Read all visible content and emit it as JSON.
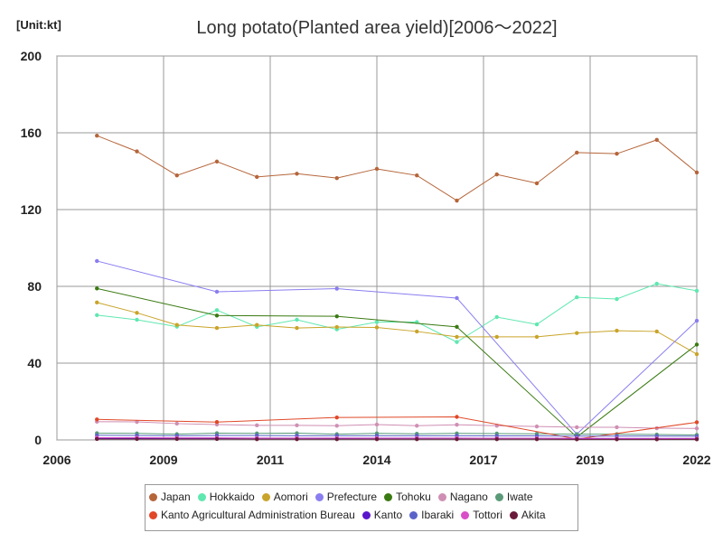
{
  "unit_label": "[Unit:kt]",
  "chart_data": {
    "type": "line",
    "title": "Long potato(Planted area yield)[2006～2022]",
    "xlabel": "",
    "ylabel": "",
    "xlim": [
      2006,
      2022
    ],
    "ylim": [
      0,
      200
    ],
    "x_ticks": [
      "2006",
      "2009",
      "2011",
      "2014",
      "2017",
      "2019",
      "2022"
    ],
    "y_ticks": [
      0,
      40,
      80,
      120,
      160,
      200
    ],
    "grid": true,
    "legend_position": "bottom",
    "x": [
      2007,
      2008,
      2009,
      2010,
      2011,
      2012,
      2013,
      2014,
      2015,
      2016,
      2017,
      2018,
      2019,
      2020,
      2021,
      2022
    ],
    "series": [
      {
        "name": "Japan",
        "color": "#b5653a",
        "values": [
          158.5,
          150.3,
          137.8,
          145.0,
          137.0,
          138.7,
          136.4,
          141.2,
          137.8,
          124.7,
          138.3,
          133.7,
          149.7,
          149.1,
          156.3,
          139.3
        ]
      },
      {
        "name": "Hokkaido",
        "color": "#5fe8b0",
        "values": [
          65.0,
          62.6,
          59.0,
          67.6,
          58.9,
          62.6,
          57.6,
          61.4,
          61.4,
          51.0,
          64.0,
          60.2,
          74.3,
          73.4,
          81.4,
          77.7
        ]
      },
      {
        "name": "Aomori",
        "color": "#c9a42a",
        "values": [
          71.6,
          66.2,
          59.9,
          58.3,
          59.9,
          58.3,
          58.8,
          58.6,
          56.5,
          53.7,
          53.7,
          53.7,
          55.7,
          56.9,
          56.5,
          44.7
        ]
      },
      {
        "name": "Prefecture",
        "color": "#8a7ef0",
        "values": [
          93.2,
          null,
          null,
          77.2,
          null,
          null,
          78.8,
          null,
          null,
          73.9,
          null,
          null,
          3.0,
          null,
          null,
          62.1
        ]
      },
      {
        "name": "Tohoku",
        "color": "#3a7a12",
        "values": [
          78.9,
          null,
          null,
          64.8,
          null,
          null,
          64.4,
          null,
          null,
          58.9,
          null,
          null,
          1.5,
          null,
          null,
          49.7
        ]
      },
      {
        "name": "Nagano",
        "color": "#cf8fb4",
        "values": [
          9.5,
          9.4,
          8.5,
          8.0,
          7.6,
          7.6,
          7.4,
          8.0,
          7.4,
          7.9,
          7.4,
          7.0,
          6.6,
          6.6,
          6.1,
          6.0
        ]
      },
      {
        "name": "Iwate",
        "color": "#5a9a78",
        "values": [
          3.5,
          3.4,
          3.0,
          3.5,
          3.4,
          3.5,
          3.0,
          3.4,
          3.2,
          3.4,
          3.3,
          3.2,
          3.0,
          3.0,
          2.8,
          2.6
        ]
      },
      {
        "name": "Kanto Agricultural Administration Bureau",
        "color": "#e04828",
        "values": [
          10.7,
          null,
          null,
          9.3,
          null,
          null,
          11.7,
          null,
          null,
          12.0,
          null,
          null,
          0.5,
          null,
          null,
          9.2
        ]
      },
      {
        "name": "Kanto",
        "color": "#5a16cc",
        "values": [
          0.9,
          0.9,
          0.8,
          0.9,
          0.8,
          0.8,
          0.7,
          0.8,
          0.8,
          0.9,
          0.8,
          0.8,
          0.7,
          0.7,
          0.7,
          0.7
        ]
      },
      {
        "name": "Ibaraki",
        "color": "#5a64c8",
        "values": [
          2.4,
          2.3,
          2.2,
          2.3,
          2.3,
          2.2,
          2.2,
          2.2,
          2.2,
          2.2,
          2.1,
          2.1,
          2.0,
          2.0,
          2.0,
          1.9
        ]
      },
      {
        "name": "Tottori",
        "color": "#d84fc8",
        "values": [
          1.2,
          1.2,
          1.1,
          1.1,
          1.0,
          1.0,
          1.0,
          1.0,
          1.0,
          1.0,
          0.9,
          0.9,
          0.9,
          0.8,
          0.8,
          0.8
        ]
      },
      {
        "name": "Akita",
        "color": "#6a1a3a",
        "values": [
          0.5,
          0.5,
          0.5,
          0.5,
          0.4,
          0.4,
          0.4,
          0.4,
          0.4,
          0.4,
          0.4,
          0.4,
          0.3,
          0.3,
          0.3,
          0.3
        ]
      }
    ]
  }
}
